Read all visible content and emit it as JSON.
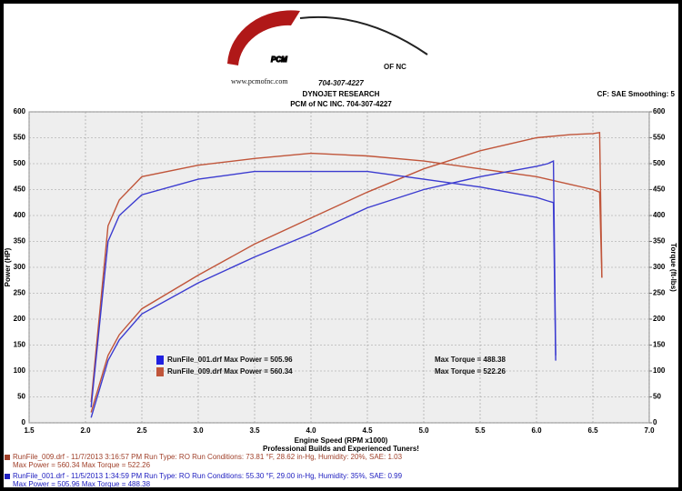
{
  "logo": {
    "brand": "PCM",
    "suffix": "OF NC",
    "phone": "704-307-4227",
    "url": "www.pcmofnc.com"
  },
  "header": {
    "company": "DYNOJET RESEARCH",
    "shop": "PCM of NC INC. 704-307-4227",
    "settings": "CF: SAE  Smoothing: 5"
  },
  "chart_data": {
    "type": "line",
    "xlabel": "Engine Speed (RPM x1000)",
    "ylabel": "Power (HP)",
    "y2label": "Torque (ft-lbs)",
    "xlim": [
      1.5,
      7.0
    ],
    "xticks": [
      1.5,
      {
        "value": 2.0,
        "label": "2.0"
      },
      2.5,
      {
        "value": 3.0,
        "label": "3.0"
      },
      3.5,
      {
        "value": 4.0,
        "label": "4.0"
      },
      4.5,
      {
        "value": 5.0,
        "label": "5.0"
      },
      5.5,
      {
        "value": 6.0,
        "label": "6.0"
      },
      6.5,
      {
        "value": 7.0,
        "label": "7.0"
      }
    ],
    "ylim": [
      0,
      600
    ],
    "yticks": [
      0,
      50,
      100,
      150,
      200,
      250,
      300,
      350,
      400,
      450,
      500,
      550,
      600
    ],
    "y2lim": [
      0,
      600
    ],
    "y2ticks": [
      0,
      50,
      100,
      150,
      200,
      250,
      300,
      350,
      400,
      450,
      500,
      550,
      600
    ],
    "grid": true,
    "series": [
      {
        "color": "#c0553a",
        "axis": "y",
        "x": [
          2.05,
          2.2,
          2.3,
          2.5,
          3.0,
          3.5,
          4.0,
          4.5,
          5.0,
          5.5,
          6.0,
          6.3,
          6.5,
          6.56,
          6.58
        ],
        "values": [
          20,
          130,
          170,
          220,
          285,
          345,
          395,
          445,
          490,
          525,
          550,
          556,
          558,
          560,
          280
        ]
      },
      {
        "color": "#c0553a",
        "axis": "y2",
        "x": [
          2.05,
          2.2,
          2.3,
          2.5,
          3.0,
          3.5,
          4.0,
          4.5,
          5.0,
          5.5,
          6.0,
          6.3,
          6.5,
          6.56,
          6.58
        ],
        "values": [
          40,
          380,
          430,
          475,
          497,
          510,
          520,
          515,
          505,
          490,
          475,
          460,
          450,
          445,
          280
        ]
      },
      {
        "color": "#3b3bd0",
        "axis": "y",
        "x": [
          2.05,
          2.2,
          2.3,
          2.5,
          3.0,
          3.5,
          4.0,
          4.5,
          5.0,
          5.5,
          6.0,
          6.1,
          6.15,
          6.17
        ],
        "values": [
          10,
          120,
          160,
          210,
          270,
          320,
          365,
          415,
          450,
          475,
          495,
          500,
          505,
          130
        ]
      },
      {
        "color": "#3b3bd0",
        "axis": "y2",
        "x": [
          2.05,
          2.2,
          2.3,
          2.5,
          3.0,
          3.5,
          4.0,
          4.5,
          5.0,
          5.5,
          6.0,
          6.1,
          6.15,
          6.17
        ],
        "values": [
          30,
          350,
          400,
          440,
          470,
          485,
          485,
          485,
          470,
          455,
          435,
          428,
          425,
          120
        ]
      }
    ],
    "legend": [
      {
        "color": "#2020e0",
        "text": "RunFile_001.drf Max Power = 505.96",
        "torque": "Max Torque = 488.38"
      },
      {
        "color": "#c0553a",
        "text": "RunFile_009.drf Max Power = 560.34",
        "torque": "Max Torque = 522.26"
      }
    ]
  },
  "footer": {
    "tagline": "Professional Builds and Experienced Tuners!",
    "runs": [
      {
        "color": "#a0402a",
        "line1": "RunFile_009.drf - 11/7/2013 3:16:57 PM   Run Type: RO   Run Conditions: 73.81 °F, 28.62 in-Hg,   Humidity:  20%,  SAE: 1.03",
        "line2": "Max Power = 560.34   Max Torque = 522.26"
      },
      {
        "color": "#2020c0",
        "line1": "RunFile_001.drf - 11/5/2013 1:34:59 PM   Run Type: RO   Run Conditions: 55.30 °F, 29.00 in-Hg,   Humidity:  35%,  SAE: 0.99",
        "line2": "Max Power = 505.96   Max Torque = 488.38"
      }
    ]
  }
}
